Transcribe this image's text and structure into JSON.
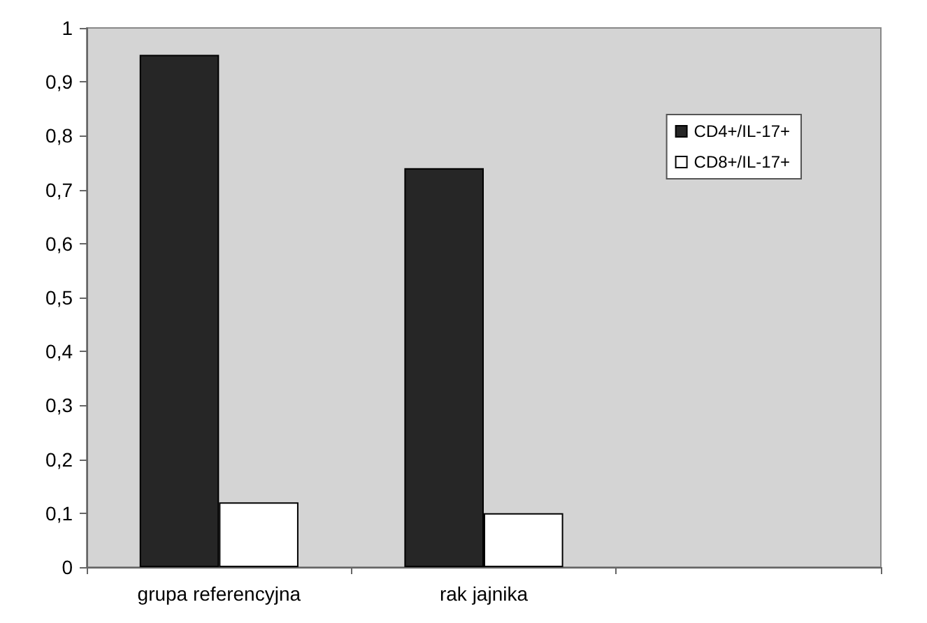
{
  "chart_data": {
    "type": "bar",
    "categories": [
      "grupa referencyjna",
      "rak jajnika",
      null
    ],
    "series": [
      {
        "name": "CD4+/IL-17+",
        "color": "#262626",
        "values": [
          0.95,
          0.74,
          null
        ]
      },
      {
        "name": "CD8+/IL-17+",
        "color": "#ffffff",
        "values": [
          0.12,
          0.1,
          null
        ]
      }
    ],
    "ylim": [
      0,
      1
    ],
    "yticks": [
      0,
      {
        "value": 0.1,
        "label": "0,1"
      },
      {
        "value": 0.2,
        "label": "0,2"
      },
      {
        "value": 0.3,
        "label": "0,3"
      },
      {
        "value": 0.4,
        "label": "0,4"
      },
      {
        "value": 0.5,
        "label": "0,5"
      },
      {
        "value": 0.6,
        "label": "0,6"
      },
      {
        "value": 0.7,
        "label": "0,7"
      },
      {
        "value": 0.8,
        "label": "0,8"
      },
      {
        "value": 0.9,
        "label": "0,9"
      },
      1
    ],
    "grid": false,
    "legend": "top right"
  }
}
